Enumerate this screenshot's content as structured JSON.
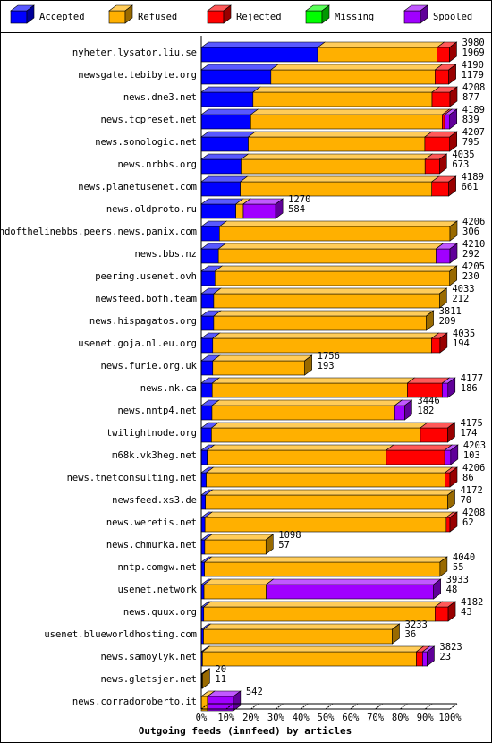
{
  "chart_data": {
    "type": "stacked-bar-3d",
    "title": "Outgoing feeds (innfeed) by articles",
    "categories": [
      "nyheter.lysator.liu.se",
      "newsgate.tebibyte.org",
      "news.dne3.net",
      "news.tcpreset.net",
      "news.sonologic.net",
      "news.nrbbs.org",
      "news.planetusenet.com",
      "news.oldproto.ru",
      "endofthelinebbs.peers.news.panix.com",
      "news.bbs.nz",
      "peering.usenet.ovh",
      "newsfeed.bofh.team",
      "news.hispagatos.org",
      "usenet.goja.nl.eu.org",
      "news.furie.org.uk",
      "news.nk.ca",
      "news.nntp4.net",
      "twilightnode.org",
      "m68k.vk3heg.net",
      "news.tnetconsulting.net",
      "newsfeed.xs3.de",
      "news.weretis.net",
      "news.chmurka.net",
      "nntp.comgw.net",
      "usenet.network",
      "news.quux.org",
      "usenet.blueworldhosting.com",
      "news.samoylyk.net",
      "news.gletsjer.net",
      "news.corradoroberto.it"
    ],
    "offered": [
      3980,
      4190,
      4208,
      4189,
      4207,
      4035,
      4189,
      1270,
      4206,
      4210,
      4205,
      4033,
      3811,
      4035,
      1756,
      4177,
      3446,
      4175,
      4203,
      4206,
      4172,
      4208,
      1098,
      4040,
      3933,
      4182,
      3233,
      3823,
      20,
      542
    ],
    "accepted_counts": [
      1969,
      1179,
      877,
      839,
      795,
      673,
      661,
      584,
      306,
      292,
      230,
      212,
      209,
      194,
      193,
      186,
      182,
      174,
      103,
      86,
      70,
      62,
      57,
      55,
      48,
      43,
      36,
      23,
      11,
      null
    ],
    "series": [
      {
        "name": "Accepted",
        "color": "#0000ff",
        "values": [
          46.8,
          28,
          20.8,
          19.9,
          18.9,
          16,
          15.7,
          13.9,
          7.3,
          6.9,
          5.5,
          5,
          5,
          4.6,
          4.6,
          4.4,
          4.3,
          4.1,
          2.4,
          2,
          1.7,
          1.5,
          1.4,
          1.3,
          1.1,
          1,
          0.9,
          0.5,
          0.3,
          0
        ]
      },
      {
        "name": "Refused",
        "color": "#ffb000",
        "values": [
          48,
          66,
          72,
          77,
          71,
          74,
          77,
          3,
          92.7,
          87.5,
          94.4,
          90.8,
          85.5,
          88,
          37,
          78.5,
          73.5,
          84,
          72,
          96,
          97.4,
          97,
          24.6,
          94.7,
          25,
          93,
          75.9,
          86,
          0.2,
          2.5
        ]
      },
      {
        "name": "Rejected",
        "color": "#ff0000",
        "values": [
          5,
          5.5,
          7.2,
          1,
          10,
          5.8,
          6.8,
          0,
          0,
          0,
          0,
          0,
          0,
          3.4,
          0,
          14,
          0,
          11,
          23.5,
          2,
          0,
          1.5,
          0,
          0,
          0,
          5.3,
          0,
          2.5,
          0,
          0
        ]
      },
      {
        "name": "Missing",
        "color": "#00ff00",
        "values": [
          0,
          0,
          0,
          0,
          0,
          0,
          0,
          0,
          0,
          0,
          0,
          0,
          0,
          0,
          0,
          0,
          0,
          0,
          0,
          0,
          0,
          0,
          0,
          0,
          0,
          0,
          0,
          0,
          0,
          0
        ]
      },
      {
        "name": "Spooled",
        "color": "#a000ff",
        "values": [
          0,
          0,
          0,
          2,
          0,
          0,
          0,
          13,
          0,
          5.6,
          0,
          0,
          0,
          0,
          0,
          2.3,
          4,
          0,
          2.4,
          0,
          0,
          0,
          0,
          0,
          67.3,
          0,
          0,
          1.8,
          0,
          10.4
        ]
      }
    ],
    "xlim": [
      0,
      100
    ],
    "xticks": [
      {
        "value": 0,
        "label": "0%"
      },
      {
        "value": 10,
        "label": "10%"
      },
      {
        "value": 20,
        "label": "20%"
      },
      {
        "value": 30,
        "label": "30%"
      },
      {
        "value": 40,
        "label": "40%"
      },
      {
        "value": 50,
        "label": "50%"
      },
      {
        "value": 60,
        "label": "60%"
      },
      {
        "value": 70,
        "label": "70%"
      },
      {
        "value": 80,
        "label": "80%"
      },
      {
        "value": 90,
        "label": "90%"
      },
      {
        "value": 100,
        "label": "100%"
      }
    ]
  }
}
